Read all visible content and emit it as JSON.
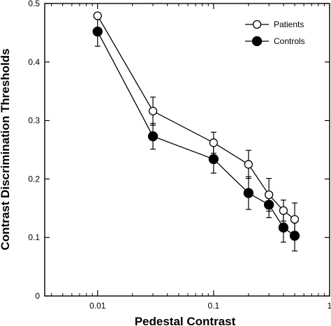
{
  "chart_data": {
    "type": "line",
    "xlabel": "Pedestal Contrast",
    "ylabel": "Contrast Discrimination Thresholds",
    "xscale": "log",
    "xlim": [
      0.0035,
      1
    ],
    "ylim": [
      0,
      0.5
    ],
    "x_ticks": [
      {
        "value": 0.01,
        "label": "0.01"
      },
      {
        "value": 0.1,
        "label": "0.1"
      },
      {
        "value": 1,
        "label": "1"
      }
    ],
    "y_ticks": [
      {
        "value": 0,
        "label": "0"
      },
      {
        "value": 0.1,
        "label": "0.1"
      },
      {
        "value": 0.2,
        "label": "0.2"
      },
      {
        "value": 0.3,
        "label": "0.3"
      },
      {
        "value": 0.4,
        "label": "0.4"
      },
      {
        "value": 0.5,
        "label": "0.5"
      }
    ],
    "grid": false,
    "legend_position": "top-right",
    "series": [
      {
        "name": "Patients",
        "marker": "open-circle",
        "color": "#000000",
        "x": [
          0.01,
          0.03,
          0.1,
          0.2,
          0.3,
          0.4,
          0.5
        ],
        "y": [
          0.479,
          0.316,
          0.262,
          0.225,
          0.173,
          0.146,
          0.131
        ],
        "err": [
          0.0,
          0.024,
          0.018,
          0.024,
          0.028,
          0.018,
          0.028
        ]
      },
      {
        "name": "Controls",
        "marker": "filled-circle",
        "color": "#000000",
        "x": [
          0.01,
          0.03,
          0.1,
          0.2,
          0.3,
          0.4,
          0.5
        ],
        "y": [
          0.452,
          0.273,
          0.234,
          0.176,
          0.156,
          0.117,
          0.103
        ],
        "err": [
          0.025,
          0.022,
          0.024,
          0.028,
          0.022,
          0.025,
          0.026
        ]
      }
    ]
  }
}
